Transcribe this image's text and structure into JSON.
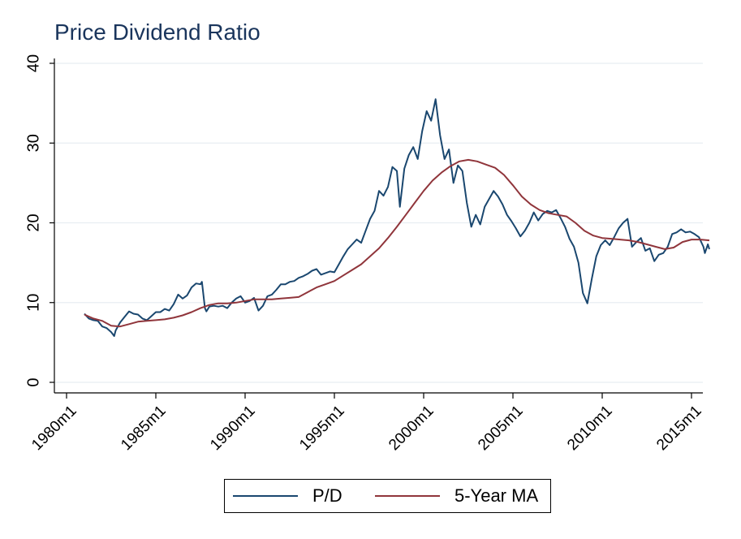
{
  "chart_data": {
    "type": "line",
    "title": "Price Dividend Ratio",
    "xlabel": "",
    "ylabel": "",
    "xlim": [
      "1980m1",
      "2016m3"
    ],
    "ylim": [
      0,
      40
    ],
    "yticks": [
      0,
      10,
      20,
      30,
      40
    ],
    "xticks": [
      "1980m1",
      "1985m1",
      "1990m1",
      "1995m1",
      "2000m1",
      "2005m1",
      "2010m1",
      "2015m1"
    ],
    "grid": true,
    "legend_position": "bottom",
    "series": [
      {
        "name": "P/D",
        "color": "#1a476f",
        "points": [
          [
            "1981m1",
            8.6
          ],
          [
            "1981m4",
            8.0
          ],
          [
            "1981m7",
            7.8
          ],
          [
            "1981m10",
            7.7
          ],
          [
            "1982m1",
            7.0
          ],
          [
            "1982m4",
            6.8
          ],
          [
            "1982m7",
            6.3
          ],
          [
            "1982m9",
            5.8
          ],
          [
            "1982m10",
            6.5
          ],
          [
            "1983m1",
            7.5
          ],
          [
            "1983m4",
            8.2
          ],
          [
            "1983m7",
            8.9
          ],
          [
            "1983m10",
            8.6
          ],
          [
            "1984m1",
            8.5
          ],
          [
            "1984m4",
            8.0
          ],
          [
            "1984m7",
            7.8
          ],
          [
            "1984m10",
            8.3
          ],
          [
            "1985m1",
            8.8
          ],
          [
            "1985m4",
            8.8
          ],
          [
            "1985m7",
            9.2
          ],
          [
            "1985m10",
            9.0
          ],
          [
            "1986m1",
            9.8
          ],
          [
            "1986m4",
            11.0
          ],
          [
            "1986m7",
            10.5
          ],
          [
            "1986m10",
            10.9
          ],
          [
            "1987m1",
            11.9
          ],
          [
            "1987m4",
            12.4
          ],
          [
            "1987m7",
            12.3
          ],
          [
            "1987m8",
            12.6
          ],
          [
            "1987m10",
            9.3
          ],
          [
            "1987m11",
            8.9
          ],
          [
            "1988m1",
            9.5
          ],
          [
            "1988m4",
            9.6
          ],
          [
            "1988m7",
            9.5
          ],
          [
            "1988m10",
            9.6
          ],
          [
            "1989m1",
            9.3
          ],
          [
            "1989m4",
            10.0
          ],
          [
            "1989m7",
            10.5
          ],
          [
            "1989m10",
            10.8
          ],
          [
            "1990m1",
            10.0
          ],
          [
            "1990m4",
            10.2
          ],
          [
            "1990m7",
            10.6
          ],
          [
            "1990m10",
            9.0
          ],
          [
            "1991m1",
            9.6
          ],
          [
            "1991m4",
            10.8
          ],
          [
            "1991m7",
            11.0
          ],
          [
            "1991m10",
            11.6
          ],
          [
            "1992m1",
            12.3
          ],
          [
            "1992m4",
            12.3
          ],
          [
            "1992m7",
            12.6
          ],
          [
            "1992m10",
            12.7
          ],
          [
            "1993m1",
            13.1
          ],
          [
            "1993m4",
            13.3
          ],
          [
            "1993m7",
            13.6
          ],
          [
            "1993m10",
            14.0
          ],
          [
            "1994m1",
            14.2
          ],
          [
            "1994m4",
            13.5
          ],
          [
            "1994m7",
            13.7
          ],
          [
            "1994m10",
            13.9
          ],
          [
            "1995m1",
            13.8
          ],
          [
            "1995m4",
            14.8
          ],
          [
            "1995m7",
            15.8
          ],
          [
            "1995m10",
            16.7
          ],
          [
            "1996m1",
            17.3
          ],
          [
            "1996m4",
            17.9
          ],
          [
            "1996m7",
            17.5
          ],
          [
            "1996m10",
            19.0
          ],
          [
            "1997m1",
            20.5
          ],
          [
            "1997m4",
            21.5
          ],
          [
            "1997m7",
            24.0
          ],
          [
            "1997m10",
            23.4
          ],
          [
            "1998m1",
            24.5
          ],
          [
            "1998m4",
            27.0
          ],
          [
            "1998m7",
            26.5
          ],
          [
            "1998m9",
            22.0
          ],
          [
            "1998m12",
            26.8
          ],
          [
            "1999m3",
            28.5
          ],
          [
            "1999m6",
            29.5
          ],
          [
            "1999m9",
            28.0
          ],
          [
            "1999m12",
            31.5
          ],
          [
            "2000m3",
            34.0
          ],
          [
            "2000m6",
            32.8
          ],
          [
            "2000m9",
            35.5
          ],
          [
            "2000m12",
            31.0
          ],
          [
            "2001m3",
            28.0
          ],
          [
            "2001m6",
            29.2
          ],
          [
            "2001m9",
            25.0
          ],
          [
            "2001m12",
            27.2
          ],
          [
            "2002m3",
            26.5
          ],
          [
            "2002m6",
            22.5
          ],
          [
            "2002m9",
            19.5
          ],
          [
            "2002m12",
            21.0
          ],
          [
            "2003m3",
            19.8
          ],
          [
            "2003m6",
            22.0
          ],
          [
            "2003m9",
            23.0
          ],
          [
            "2003m12",
            24.0
          ],
          [
            "2004m3",
            23.3
          ],
          [
            "2004m6",
            22.3
          ],
          [
            "2004m9",
            21.0
          ],
          [
            "2004m12",
            20.2
          ],
          [
            "2005m3",
            19.3
          ],
          [
            "2005m6",
            18.3
          ],
          [
            "2005m9",
            19.0
          ],
          [
            "2005m12",
            20.0
          ],
          [
            "2006m3",
            21.3
          ],
          [
            "2006m6",
            20.3
          ],
          [
            "2006m9",
            21.1
          ],
          [
            "2006m12",
            21.5
          ],
          [
            "2007m3",
            21.3
          ],
          [
            "2007m6",
            21.6
          ],
          [
            "2007m9",
            20.6
          ],
          [
            "2007m12",
            19.5
          ],
          [
            "2008m3",
            18.0
          ],
          [
            "2008m6",
            17.0
          ],
          [
            "2008m9",
            15.0
          ],
          [
            "2008m12",
            11.2
          ],
          [
            "2009m3",
            9.9
          ],
          [
            "2009m6",
            13.0
          ],
          [
            "2009m9",
            15.8
          ],
          [
            "2009m12",
            17.2
          ],
          [
            "2010m3",
            17.8
          ],
          [
            "2010m6",
            17.2
          ],
          [
            "2010m9",
            18.2
          ],
          [
            "2010m12",
            19.3
          ],
          [
            "2011m3",
            20.0
          ],
          [
            "2011m6",
            20.5
          ],
          [
            "2011m9",
            17.0
          ],
          [
            "2011m12",
            17.6
          ],
          [
            "2012m3",
            18.1
          ],
          [
            "2012m6",
            16.5
          ],
          [
            "2012m9",
            16.8
          ],
          [
            "2012m12",
            15.2
          ],
          [
            "2013m3",
            16.0
          ],
          [
            "2013m6",
            16.2
          ],
          [
            "2013m9",
            17.0
          ],
          [
            "2013m12",
            18.6
          ],
          [
            "2014m3",
            18.8
          ],
          [
            "2014m6",
            19.2
          ],
          [
            "2014m9",
            18.8
          ],
          [
            "2014m12",
            18.9
          ],
          [
            "2015m3",
            18.6
          ],
          [
            "2015m6",
            18.2
          ],
          [
            "2015m9",
            17.0
          ],
          [
            "2015m10",
            16.2
          ],
          [
            "2015m12",
            17.3
          ],
          [
            "2016m1",
            16.7
          ]
        ]
      },
      {
        "name": "5-Year MA",
        "color": "#90353b",
        "points": [
          [
            "1981m1",
            8.5
          ],
          [
            "1981m7",
            8.0
          ],
          [
            "1982m1",
            7.7
          ],
          [
            "1982m7",
            7.1
          ],
          [
            "1983m1",
            7.0
          ],
          [
            "1983m7",
            7.3
          ],
          [
            "1984m1",
            7.6
          ],
          [
            "1984m7",
            7.7
          ],
          [
            "1985m1",
            7.8
          ],
          [
            "1985m7",
            7.9
          ],
          [
            "1986m1",
            8.1
          ],
          [
            "1986m7",
            8.4
          ],
          [
            "1987m1",
            8.8
          ],
          [
            "1987m7",
            9.3
          ],
          [
            "1988m1",
            9.7
          ],
          [
            "1988m7",
            9.9
          ],
          [
            "1989m1",
            9.9
          ],
          [
            "1989m7",
            10.0
          ],
          [
            "1990m1",
            10.2
          ],
          [
            "1990m7",
            10.4
          ],
          [
            "1991m1",
            10.4
          ],
          [
            "1991m7",
            10.4
          ],
          [
            "1992m1",
            10.5
          ],
          [
            "1992m7",
            10.6
          ],
          [
            "1993m1",
            10.7
          ],
          [
            "1993m7",
            11.3
          ],
          [
            "1994m1",
            11.9
          ],
          [
            "1994m7",
            12.3
          ],
          [
            "1995m1",
            12.7
          ],
          [
            "1995m7",
            13.4
          ],
          [
            "1996m1",
            14.1
          ],
          [
            "1996m7",
            14.8
          ],
          [
            "1997m1",
            15.8
          ],
          [
            "1997m7",
            16.8
          ],
          [
            "1998m1",
            18.1
          ],
          [
            "1998m7",
            19.5
          ],
          [
            "1999m1",
            21.0
          ],
          [
            "1999m7",
            22.5
          ],
          [
            "2000m1",
            24.0
          ],
          [
            "2000m7",
            25.3
          ],
          [
            "2001m1",
            26.3
          ],
          [
            "2001m7",
            27.1
          ],
          [
            "2002m1",
            27.7
          ],
          [
            "2002m7",
            27.9
          ],
          [
            "2003m1",
            27.7
          ],
          [
            "2003m7",
            27.3
          ],
          [
            "2004m1",
            26.9
          ],
          [
            "2004m7",
            26.0
          ],
          [
            "2005m1",
            24.7
          ],
          [
            "2005m7",
            23.3
          ],
          [
            "2006m1",
            22.3
          ],
          [
            "2006m7",
            21.6
          ],
          [
            "2007m1",
            21.2
          ],
          [
            "2007m7",
            21.0
          ],
          [
            "2008m1",
            20.8
          ],
          [
            "2008m7",
            20.0
          ],
          [
            "2009m1",
            19.0
          ],
          [
            "2009m7",
            18.4
          ],
          [
            "2010m1",
            18.1
          ],
          [
            "2010m7",
            18.0
          ],
          [
            "2011m1",
            17.9
          ],
          [
            "2011m7",
            17.8
          ],
          [
            "2012m1",
            17.6
          ],
          [
            "2012m7",
            17.3
          ],
          [
            "2013m1",
            17.0
          ],
          [
            "2013m7",
            16.7
          ],
          [
            "2014m1",
            16.9
          ],
          [
            "2014m7",
            17.6
          ],
          [
            "2015m1",
            17.9
          ],
          [
            "2015m7",
            17.9
          ],
          [
            "2016m1",
            17.8
          ]
        ]
      }
    ]
  }
}
